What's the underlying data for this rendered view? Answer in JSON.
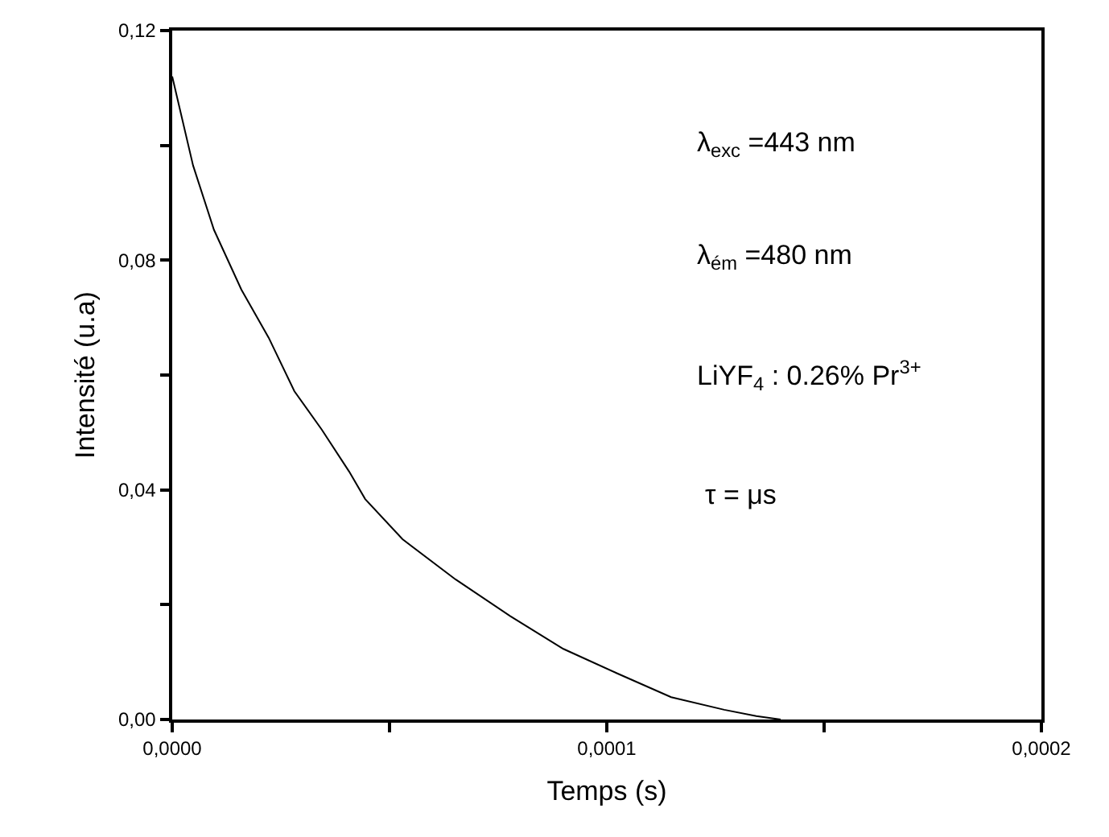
{
  "chart_data": {
    "type": "line",
    "xlabel": "Temps (s)",
    "ylabel": "Intensité (u.a)",
    "x": [
      0,
      4.8e-06,
      9.6e-06,
      1.59e-05,
      2.22e-05,
      2.81e-05,
      3.44e-05,
      4.07e-05,
      4.44e-05,
      5.3e-05,
      6.52e-05,
      7.78e-05,
      9e-05,
      0.0001022,
      0.0001148,
      0.000127,
      0.0001344,
      0.00014
    ],
    "series": [
      {
        "color": "#000000",
        "values": [
          0.112,
          0.0965,
          0.0853,
          0.0749,
          0.0665,
          0.0572,
          0.0505,
          0.0432,
          0.0384,
          0.0314,
          0.0244,
          0.018,
          0.0123,
          0.0081,
          0.0039,
          0.0017,
          0.0006,
          0.0
        ]
      }
    ],
    "xlim": [
      0,
      0.0002
    ],
    "ylim": [
      0,
      0.12
    ],
    "xticks": [
      {
        "value": 0,
        "label": "0,0000"
      },
      {
        "value": 5e-05,
        "label": null
      },
      {
        "value": 0.0001,
        "label": "0,0001"
      },
      {
        "value": 0.00015,
        "label": null
      },
      {
        "value": 0.0002,
        "label": "0,0002"
      }
    ],
    "yticks": [
      {
        "value": 0,
        "label": "0,00"
      },
      {
        "value": 0.02,
        "label": null
      },
      {
        "value": 0.04,
        "label": "0,04"
      },
      {
        "value": 0.06,
        "label": null
      },
      {
        "value": 0.08,
        "label": "0,08"
      },
      {
        "value": 0.1,
        "label": null
      },
      {
        "value": 0.12,
        "label": "0,12"
      }
    ],
    "annotations": [
      "λ$_{exc}$ =443 nm",
      "λ$_{ém}$ =480 nm",
      "LiYF$_{4}$ : 0.26% Pr$^{3+}$",
      "τ = μs"
    ],
    "line_style": "solid",
    "marker": "none"
  }
}
